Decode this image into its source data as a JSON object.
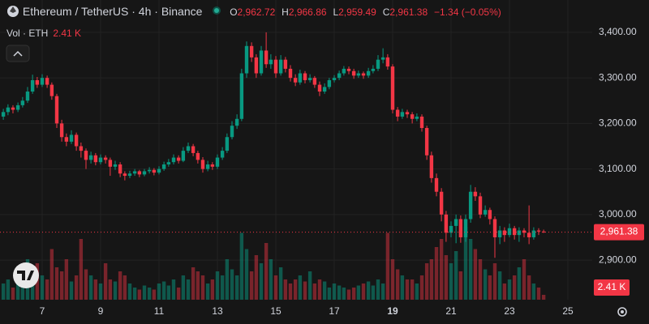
{
  "header": {
    "symbol": "Ethereum / TetherUS · 4h · Binance",
    "o_label": "O",
    "o": "2,962.72",
    "h_label": "H",
    "h": "2,966.86",
    "l_label": "L",
    "l": "2,959.49",
    "c_label": "C",
    "c": "2,961.38",
    "change": "−1.34 (−0.05%)",
    "vol_label": "Vol · ETH",
    "vol": "2.41 K"
  },
  "chart_data": {
    "type": "candlestick",
    "x": [
      5.67,
      5.83,
      6,
      6.17,
      6.33,
      6.5,
      6.67,
      6.83,
      7,
      7.17,
      7.33,
      7.5,
      7.67,
      7.83,
      8,
      8.17,
      8.33,
      8.5,
      8.67,
      8.83,
      9,
      9.17,
      9.33,
      9.5,
      9.67,
      9.83,
      10,
      10.17,
      10.33,
      10.5,
      10.67,
      10.83,
      11,
      11.17,
      11.33,
      11.5,
      11.67,
      11.83,
      12,
      12.17,
      12.33,
      12.5,
      12.67,
      12.83,
      13,
      13.17,
      13.33,
      13.5,
      13.67,
      13.83,
      14,
      14.17,
      14.33,
      14.5,
      14.67,
      14.83,
      15,
      15.17,
      15.33,
      15.5,
      15.67,
      15.83,
      16,
      16.17,
      16.33,
      16.5,
      16.67,
      16.83,
      17,
      17.17,
      17.33,
      17.5,
      17.67,
      17.83,
      18,
      18.17,
      18.33,
      18.5,
      18.67,
      18.83,
      19,
      19.17,
      19.33,
      19.5,
      19.67,
      19.83,
      20,
      20.17,
      20.33,
      20.5,
      20.67,
      20.83,
      21,
      21.17,
      21.33,
      21.5,
      21.67,
      21.83,
      22,
      22.17,
      22.33,
      22.5,
      22.67,
      22.83,
      23,
      23.17,
      23.33,
      23.5,
      23.67,
      23.83,
      24,
      24.17
    ],
    "candles": [
      [
        3215,
        3232,
        3208,
        3225
      ],
      [
        3225,
        3242,
        3218,
        3235
      ],
      [
        3235,
        3240,
        3222,
        3230
      ],
      [
        3230,
        3246,
        3225,
        3240
      ],
      [
        3240,
        3258,
        3235,
        3250
      ],
      [
        3250,
        3280,
        3245,
        3270
      ],
      [
        3270,
        3307,
        3265,
        3295
      ],
      [
        3295,
        3302,
        3278,
        3285
      ],
      [
        3285,
        3308,
        3280,
        3300
      ],
      [
        3300,
        3305,
        3278,
        3285
      ],
      [
        3285,
        3290,
        3252,
        3260
      ],
      [
        3260,
        3265,
        3190,
        3200
      ],
      [
        3200,
        3208,
        3160,
        3170
      ],
      [
        3170,
        3178,
        3150,
        3160
      ],
      [
        3160,
        3185,
        3155,
        3175
      ],
      [
        3175,
        3180,
        3140,
        3150
      ],
      [
        3150,
        3158,
        3125,
        3140
      ],
      [
        3140,
        3145,
        3100,
        3120
      ],
      [
        3120,
        3138,
        3112,
        3130
      ],
      [
        3130,
        3135,
        3108,
        3115
      ],
      [
        3115,
        3132,
        3110,
        3125
      ],
      [
        3125,
        3130,
        3112,
        3120
      ],
      [
        3120,
        3125,
        3085,
        3105
      ],
      [
        3105,
        3118,
        3098,
        3110
      ],
      [
        3110,
        3115,
        3082,
        3090
      ],
      [
        3090,
        3095,
        3075,
        3085
      ],
      [
        3085,
        3096,
        3080,
        3090
      ],
      [
        3090,
        3100,
        3085,
        3095
      ],
      [
        3095,
        3098,
        3082,
        3088
      ],
      [
        3088,
        3100,
        3084,
        3095
      ],
      [
        3095,
        3104,
        3090,
        3098
      ],
      [
        3098,
        3102,
        3086,
        3092
      ],
      [
        3092,
        3106,
        3088,
        3100
      ],
      [
        3100,
        3116,
        3096,
        3110
      ],
      [
        3110,
        3122,
        3105,
        3115
      ],
      [
        3115,
        3132,
        3110,
        3125
      ],
      [
        3125,
        3130,
        3112,
        3118
      ],
      [
        3118,
        3148,
        3115,
        3140
      ],
      [
        3140,
        3158,
        3135,
        3150
      ],
      [
        3150,
        3155,
        3128,
        3135
      ],
      [
        3135,
        3140,
        3112,
        3120
      ],
      [
        3120,
        3126,
        3092,
        3100
      ],
      [
        3100,
        3118,
        3095,
        3110
      ],
      [
        3110,
        3115,
        3098,
        3105
      ],
      [
        3105,
        3132,
        3100,
        3125
      ],
      [
        3125,
        3148,
        3120,
        3140
      ],
      [
        3140,
        3178,
        3135,
        3170
      ],
      [
        3170,
        3205,
        3165,
        3195
      ],
      [
        3195,
        3220,
        3188,
        3210
      ],
      [
        3210,
        3320,
        3205,
        3310
      ],
      [
        3310,
        3380,
        3300,
        3370
      ],
      [
        3370,
        3378,
        3335,
        3345
      ],
      [
        3345,
        3352,
        3300,
        3310
      ],
      [
        3310,
        3370,
        3305,
        3360
      ],
      [
        3360,
        3400,
        3322,
        3330
      ],
      [
        3330,
        3352,
        3320,
        3340
      ],
      [
        3340,
        3348,
        3300,
        3310
      ],
      [
        3310,
        3350,
        3305,
        3340
      ],
      [
        3340,
        3346,
        3312,
        3320
      ],
      [
        3320,
        3328,
        3292,
        3300
      ],
      [
        3300,
        3308,
        3282,
        3290
      ],
      [
        3290,
        3318,
        3285,
        3310
      ],
      [
        3310,
        3315,
        3288,
        3295
      ],
      [
        3295,
        3308,
        3290,
        3300
      ],
      [
        3300,
        3304,
        3278,
        3285
      ],
      [
        3285,
        3292,
        3260,
        3270
      ],
      [
        3270,
        3288,
        3265,
        3280
      ],
      [
        3280,
        3300,
        3275,
        3295
      ],
      [
        3295,
        3306,
        3290,
        3300
      ],
      [
        3300,
        3316,
        3295,
        3310
      ],
      [
        3310,
        3326,
        3305,
        3320
      ],
      [
        3320,
        3325,
        3308,
        3315
      ],
      [
        3315,
        3320,
        3298,
        3305
      ],
      [
        3305,
        3316,
        3300,
        3310
      ],
      [
        3310,
        3314,
        3298,
        3305
      ],
      [
        3305,
        3322,
        3300,
        3315
      ],
      [
        3315,
        3328,
        3310,
        3320
      ],
      [
        3320,
        3350,
        3315,
        3340
      ],
      [
        3340,
        3365,
        3332,
        3345
      ],
      [
        3345,
        3352,
        3318,
        3325
      ],
      [
        3325,
        3330,
        3222,
        3230
      ],
      [
        3230,
        3236,
        3205,
        3215
      ],
      [
        3215,
        3232,
        3210,
        3225
      ],
      [
        3225,
        3230,
        3212,
        3220
      ],
      [
        3220,
        3225,
        3200,
        3210
      ],
      [
        3210,
        3222,
        3205,
        3215
      ],
      [
        3215,
        3220,
        3182,
        3190
      ],
      [
        3190,
        3195,
        3120,
        3130
      ],
      [
        3130,
        3138,
        3070,
        3080
      ],
      [
        3080,
        3090,
        3040,
        3050
      ],
      [
        3050,
        3058,
        2985,
        3000
      ],
      [
        3000,
        3008,
        2940,
        2960
      ],
      [
        2960,
        2985,
        2950,
        2975
      ],
      [
        2975,
        3000,
        2937,
        2990
      ],
      [
        2990,
        2998,
        2938,
        2950
      ],
      [
        2950,
        3000,
        2940,
        2990
      ],
      [
        2990,
        3065,
        2982,
        3050
      ],
      [
        3050,
        3060,
        3030,
        3040
      ],
      [
        3040,
        3048,
        2992,
        3000
      ],
      [
        3000,
        3020,
        2995,
        3010
      ],
      [
        3010,
        3015,
        2978,
        2990
      ],
      [
        2990,
        2996,
        2905,
        2950
      ],
      [
        2950,
        2975,
        2935,
        2965
      ],
      [
        2965,
        2972,
        2940,
        2955
      ],
      [
        2955,
        2980,
        2950,
        2970
      ],
      [
        2970,
        2975,
        2945,
        2955
      ],
      [
        2955,
        2972,
        2940,
        2965
      ],
      [
        2965,
        2970,
        2950,
        2960
      ],
      [
        2960,
        3020,
        2935,
        2950
      ],
      [
        2950,
        2972,
        2945,
        2965
      ],
      [
        2965,
        2970,
        2955,
        2962.72
      ],
      [
        2962.72,
        2966.86,
        2959.49,
        2961.38
      ]
    ],
    "volume": [
      8,
      10,
      6,
      9,
      12,
      20,
      15,
      18,
      12,
      10,
      25,
      16,
      14,
      20,
      9,
      12,
      30,
      15,
      12,
      10,
      8,
      18,
      10,
      9,
      14,
      12,
      8,
      6,
      5,
      7,
      6,
      5,
      8,
      9,
      7,
      10,
      6,
      12,
      10,
      16,
      14,
      12,
      8,
      10,
      14,
      12,
      20,
      15,
      12,
      33,
      25,
      14,
      22,
      18,
      28,
      20,
      12,
      16,
      10,
      8,
      10,
      12,
      9,
      14,
      8,
      10,
      9,
      6,
      8,
      7,
      6,
      5,
      6,
      7,
      8,
      9,
      7,
      10,
      8,
      33,
      20,
      15,
      12,
      10,
      10,
      8,
      12,
      18,
      20,
      26,
      30,
      22,
      18,
      24,
      14,
      36,
      30,
      25,
      20,
      15,
      12,
      18,
      14,
      8,
      10,
      12,
      16,
      20,
      12,
      8,
      6,
      2.41
    ],
    "up_color": "#089981",
    "down_color": "#f23645",
    "xlim": [
      5.556,
      25.833
    ],
    "xticks": [
      7,
      9,
      11,
      13,
      15,
      17,
      19,
      21,
      23,
      25
    ],
    "bold_xticks": [
      19
    ],
    "ylim": [
      2813,
      3471
    ],
    "yticks": [
      {
        "value": 2900,
        "label": "2,900.00"
      },
      {
        "value": 3000,
        "label": "3,000.00"
      },
      {
        "value": 3100,
        "label": "3,100.00"
      },
      {
        "value": 3200,
        "label": "3,200.00"
      },
      {
        "value": 3300,
        "label": "3,300.00"
      },
      {
        "value": 3400,
        "label": "3,400.00"
      }
    ],
    "vlim": [
      0,
      40
    ],
    "last_price": {
      "value": 2961.38,
      "label": "2,961.38"
    },
    "last_volume": {
      "value": 2.41,
      "label": "2.41 K"
    },
    "grid": true
  }
}
